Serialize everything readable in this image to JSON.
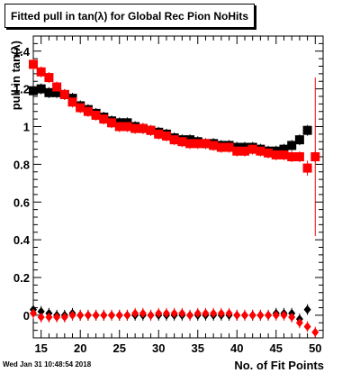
{
  "chart_data": {
    "type": "scatter",
    "title": "Fitted pull in tan(λ) for Global Rec Pion NoHits",
    "xlabel": "No. of Fit Points",
    "ylabel": "pull in tan(λ)",
    "xlim": [
      14,
      51
    ],
    "ylim": [
      -0.12,
      1.48
    ],
    "x_ticks": [
      15,
      20,
      25,
      30,
      35,
      40,
      45,
      50
    ],
    "y_ticks": [
      0,
      0.2,
      0.4,
      0.6,
      0.8,
      1,
      1.2,
      1.4
    ],
    "y_tick_labels": [
      "0",
      "0.2",
      "0.4",
      "0.6",
      "0.8",
      "1",
      "1.2",
      "1.4"
    ],
    "grid": false,
    "legend": "none",
    "series": [
      {
        "color": "#000000",
        "marker": "square",
        "x": [
          14,
          15,
          16,
          17,
          18,
          19,
          20,
          21,
          22,
          23,
          24,
          25,
          26,
          27,
          28,
          29,
          30,
          31,
          32,
          33,
          34,
          35,
          36,
          37,
          38,
          39,
          40,
          41,
          42,
          43,
          44,
          45,
          46,
          47,
          48,
          49
        ],
        "y": [
          1.19,
          1.2,
          1.18,
          1.18,
          1.17,
          1.15,
          1.11,
          1.09,
          1.07,
          1.05,
          1.03,
          1.02,
          1.02,
          1.0,
          0.99,
          0.98,
          0.97,
          0.96,
          0.94,
          0.93,
          0.93,
          0.92,
          0.91,
          0.91,
          0.9,
          0.9,
          0.89,
          0.89,
          0.89,
          0.88,
          0.87,
          0.87,
          0.88,
          0.9,
          0.93,
          0.98
        ]
      },
      {
        "color": "#ff0000",
        "marker": "square",
        "x": [
          14,
          15,
          16,
          17,
          18,
          19,
          20,
          21,
          22,
          23,
          24,
          25,
          26,
          27,
          28,
          29,
          30,
          31,
          32,
          33,
          34,
          35,
          36,
          37,
          38,
          39,
          40,
          41,
          42,
          43,
          44,
          45,
          46,
          47,
          48,
          49,
          50
        ],
        "y": [
          1.33,
          1.29,
          1.26,
          1.21,
          1.17,
          1.13,
          1.1,
          1.08,
          1.06,
          1.04,
          1.02,
          1.0,
          1.0,
          0.99,
          0.99,
          0.98,
          0.96,
          0.95,
          0.93,
          0.92,
          0.91,
          0.91,
          0.91,
          0.9,
          0.89,
          0.89,
          0.87,
          0.87,
          0.88,
          0.87,
          0.86,
          0.85,
          0.85,
          0.84,
          0.84,
          0.78,
          0.84
        ],
        "error_x": [
          49,
          50
        ],
        "error_y": [
          0.04,
          0.42
        ]
      },
      {
        "color": "#000000",
        "marker": "diamond",
        "x": [
          14,
          15,
          16,
          17,
          18,
          19,
          20,
          21,
          22,
          23,
          24,
          25,
          26,
          27,
          28,
          29,
          30,
          31,
          32,
          33,
          34,
          35,
          36,
          37,
          38,
          39,
          40,
          41,
          42,
          43,
          44,
          45,
          46,
          47,
          48,
          49
        ],
        "y": [
          0.03,
          0.02,
          0.01,
          0.0,
          0.0,
          0.01,
          0.0,
          0.0,
          0.0,
          0.0,
          0.0,
          0.0,
          0.0,
          0.0,
          0.0,
          0.0,
          0.0,
          0.0,
          0.0,
          0.0,
          0.0,
          0.0,
          0.0,
          0.0,
          0.0,
          0.0,
          0.0,
          0.0,
          0.0,
          0.0,
          0.0,
          0.01,
          0.01,
          0.01,
          -0.02,
          0.03
        ]
      },
      {
        "color": "#ff0000",
        "marker": "diamond",
        "x": [
          14,
          15,
          16,
          17,
          18,
          19,
          20,
          21,
          22,
          23,
          24,
          25,
          26,
          27,
          28,
          29,
          30,
          31,
          32,
          33,
          34,
          35,
          36,
          37,
          38,
          39,
          40,
          41,
          42,
          43,
          44,
          45,
          46,
          47,
          48,
          49,
          50
        ],
        "y": [
          0.01,
          -0.01,
          -0.01,
          -0.01,
          -0.01,
          0.0,
          0.0,
          0.0,
          0.0,
          0.0,
          0.0,
          0.0,
          0.0,
          0.01,
          0.01,
          0.0,
          0.01,
          0.01,
          0.01,
          0.01,
          0.0,
          0.01,
          0.01,
          0.01,
          0.01,
          0.01,
          0.0,
          0.0,
          0.0,
          0.0,
          0.0,
          0.0,
          0.0,
          -0.01,
          -0.04,
          -0.06,
          -0.09
        ]
      }
    ]
  },
  "footer": {
    "timestamp": "Wed Jan 31 10:48:54 2018"
  }
}
